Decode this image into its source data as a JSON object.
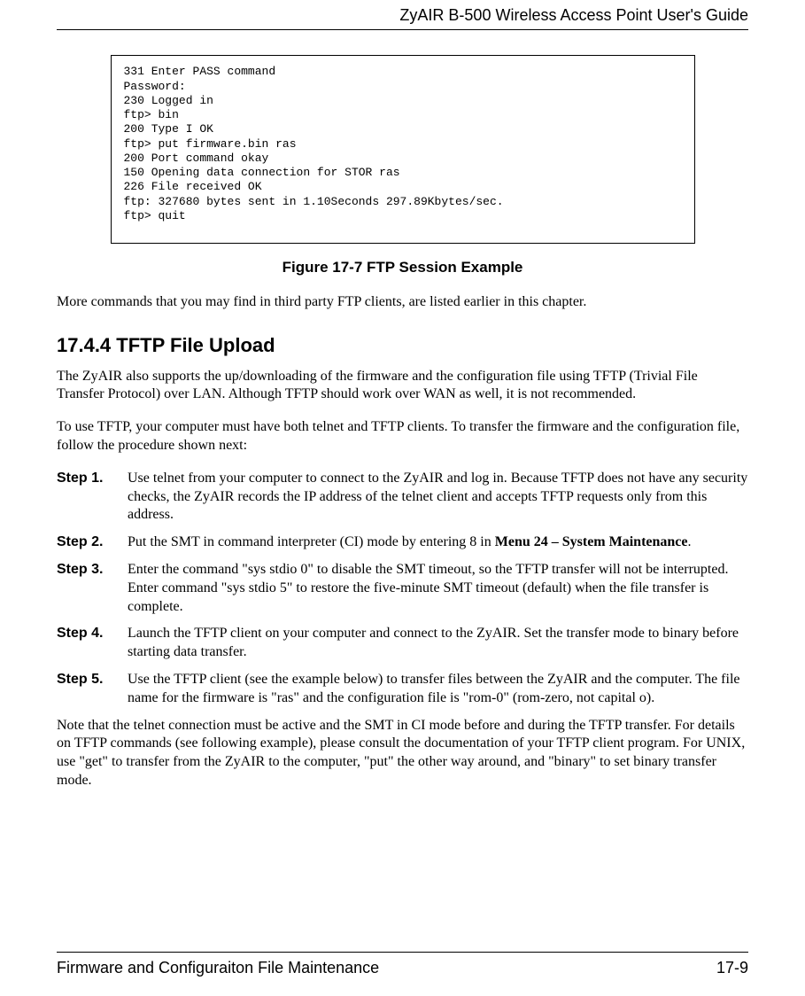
{
  "header": {
    "running_title": "ZyAIR B-500 Wireless Access Point User's Guide"
  },
  "code_box": {
    "lines": "331 Enter PASS command\nPassword:\n230 Logged in\nftp> bin\n200 Type I OK\nftp> put firmware.bin ras\n200 Port command okay\n150 Opening data connection for STOR ras\n226 File received OK\nftp: 327680 bytes sent in 1.10Seconds 297.89Kbytes/sec.\nftp> quit"
  },
  "figure_caption": "Figure 17-7 FTP Session Example",
  "para_after_figure": "More commands that you may find in third party FTP clients, are listed earlier in this chapter.",
  "section": {
    "number": "17.4.4",
    "title": "TFTP File Upload"
  },
  "para1": "The ZyAIR also supports the up/downloading of the firmware and the configuration file using TFTP (Trivial File Transfer Protocol) over LAN. Although TFTP should work over WAN as well, it is not recommended.",
  "para2": "To use TFTP, your computer must have both telnet and TFTP clients. To transfer the firmware and the configuration file, follow the procedure shown next:",
  "steps": [
    {
      "label": "Step 1.",
      "html": "Use telnet from your computer to connect to the ZyAIR and log in. Because TFTP does not have any security checks, the ZyAIR records the IP address of the telnet client and accepts TFTP requests only from this address."
    },
    {
      "label": "Step 2.",
      "html": "Put the SMT in command interpreter (CI) mode by entering 8 in <b>Menu 24 – System Maintenance</b>."
    },
    {
      "label": "Step 3.",
      "html": "Enter the command \"sys stdio 0\" to disable the SMT timeout, so the TFTP transfer will not be interrupted. Enter command \"sys stdio 5\" to restore the five-minute SMT timeout (default) when the file transfer is complete."
    },
    {
      "label": "Step 4.",
      "html": "Launch the TFTP client on your computer and connect to the ZyAIR. Set the transfer mode to binary before starting data transfer."
    },
    {
      "label": "Step 5.",
      "html": "Use the TFTP client (see the example below) to transfer files between the ZyAIR and the computer. The file name for the firmware is \"ras\" and the configuration file is \"rom-0\" (rom-zero, not capital o)."
    }
  ],
  "para_closing": "Note that the telnet connection must be active and the SMT in CI mode before and during the TFTP transfer. For details on TFTP commands (see following example), please consult the documentation of your TFTP client program. For UNIX, use \"get\" to transfer from the ZyAIR to the computer, \"put\" the other way around, and \"binary\" to set binary transfer mode.",
  "footer": {
    "left": "Firmware and Configuraiton File Maintenance",
    "right": "17-9"
  }
}
